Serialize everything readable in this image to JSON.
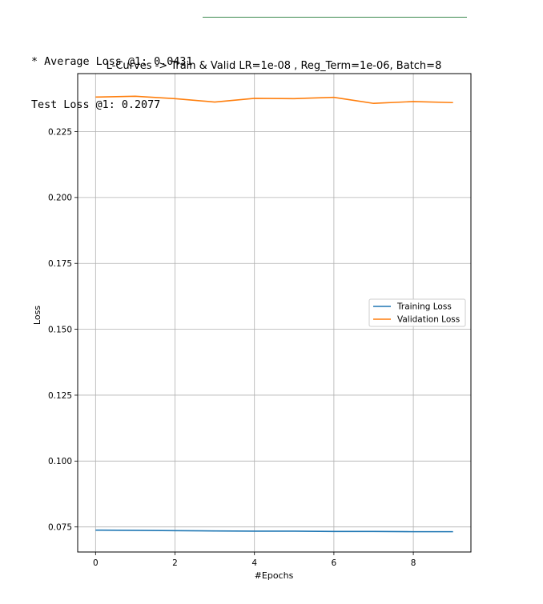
{
  "output": {
    "line1": "* Average Loss @1: 0.0431",
    "line2": "Test Loss @1: 0.2077"
  },
  "chart_data": {
    "type": "line",
    "title": "L-Curves -> Train & Valid LR=1e-08 , Reg_Term=1e-06, Batch=8",
    "xlabel": "#Epochs",
    "ylabel": "Loss",
    "xlim": [
      -0.45,
      9.45
    ],
    "ylim": [
      0.0655,
      0.247
    ],
    "xticks": [
      0,
      2,
      4,
      6,
      8
    ],
    "yticks": [
      0.075,
      0.1,
      0.125,
      0.15,
      0.175,
      0.2,
      0.225
    ],
    "ytick_labels": [
      "0.075",
      "0.100",
      "0.125",
      "0.150",
      "0.175",
      "0.200",
      "0.225"
    ],
    "grid": true,
    "legend_position": "center-right",
    "x": [
      0,
      1,
      2,
      3,
      4,
      5,
      6,
      7,
      8,
      9
    ],
    "series": [
      {
        "name": "Training Loss",
        "color": "#1f77b4",
        "values": [
          0.0738,
          0.0737,
          0.0736,
          0.0735,
          0.0734,
          0.0734,
          0.0733,
          0.0733,
          0.0732,
          0.0732
        ]
      },
      {
        "name": "Validation Loss",
        "color": "#ff7f0e",
        "values": [
          0.2381,
          0.2384,
          0.2375,
          0.2362,
          0.2376,
          0.2375,
          0.238,
          0.2357,
          0.2364,
          0.236
        ]
      }
    ]
  }
}
